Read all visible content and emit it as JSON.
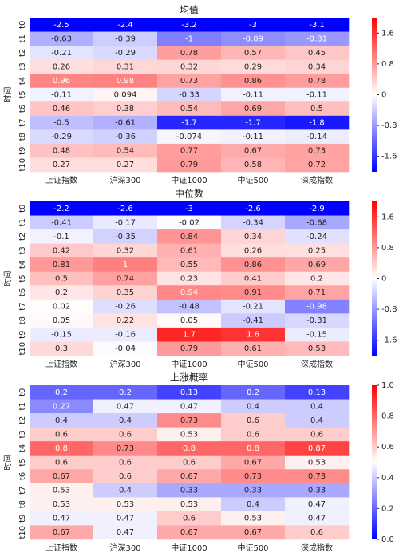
{
  "chart_data": [
    {
      "type": "heatmap",
      "title": "均值",
      "ylabel": "时间",
      "cmap": "bwr",
      "x": [
        "上证指数",
        "沪深300",
        "中证1000",
        "中证500",
        "深成指数"
      ],
      "y": [
        "t0",
        "t1",
        "t2",
        "t3",
        "t4",
        "t5",
        "t6",
        "t7",
        "t8",
        "t9",
        "t10"
      ],
      "values": [
        [
          -2.5,
          -2.4,
          -3.2,
          -3,
          -3.1
        ],
        [
          -0.63,
          -0.39,
          -1,
          -0.89,
          -0.81
        ],
        [
          -0.21,
          -0.29,
          0.78,
          0.57,
          0.45
        ],
        [
          0.26,
          0.31,
          0.32,
          0.29,
          0.34
        ],
        [
          0.96,
          0.98,
          0.73,
          0.86,
          0.78
        ],
        [
          -0.11,
          0.094,
          -0.33,
          -0.11,
          -0.11
        ],
        [
          0.46,
          0.38,
          0.54,
          0.69,
          0.5
        ],
        [
          -0.5,
          -0.61,
          -1.7,
          -1.7,
          -1.8
        ],
        [
          -0.29,
          -0.36,
          -0.074,
          -0.11,
          -0.14
        ],
        [
          0.48,
          0.54,
          0.77,
          0.67,
          0.73
        ],
        [
          0.27,
          0.27,
          0.79,
          0.58,
          0.72
        ]
      ],
      "zlim": [
        -2,
        2
      ],
      "zticks": [
        -1.6,
        -0.8,
        0,
        0.8,
        1.6
      ]
    },
    {
      "type": "heatmap",
      "title": "中位数",
      "ylabel": "时间",
      "cmap": "bwr",
      "x": [
        "上证指数",
        "沪深300",
        "中证1000",
        "中证500",
        "深成指数"
      ],
      "y": [
        "t0",
        "t1",
        "t2",
        "t3",
        "t4",
        "t5",
        "t6",
        "t7",
        "t8",
        "t9",
        "t10"
      ],
      "values": [
        [
          -2.2,
          -2.6,
          -3,
          -2.6,
          -2.9
        ],
        [
          -0.41,
          -0.17,
          -0.02,
          -0.34,
          -0.68
        ],
        [
          -0.1,
          -0.35,
          0.84,
          0.34,
          -0.24
        ],
        [
          0.42,
          0.32,
          0.61,
          0.26,
          0.25
        ],
        [
          0.81,
          1,
          0.55,
          0.86,
          0.69
        ],
        [
          0.5,
          0.74,
          0.23,
          0.41,
          0.2
        ],
        [
          0.2,
          0.35,
          0.94,
          0.91,
          0.71
        ],
        [
          0.02,
          -0.26,
          -0.48,
          -0.21,
          -0.98
        ],
        [
          0.05,
          0.22,
          0.05,
          -0.41,
          -0.31
        ],
        [
          -0.15,
          -0.16,
          1.7,
          1.6,
          -0.15
        ],
        [
          0.3,
          -0.04,
          0.79,
          0.61,
          0.53
        ]
      ],
      "zlim": [
        -2,
        2
      ],
      "zticks": [
        -1.6,
        -0.8,
        0,
        0.8,
        1.6
      ]
    },
    {
      "type": "heatmap",
      "title": "上涨概率",
      "ylabel": "时间",
      "cmap": "bwr",
      "x": [
        "上证指数",
        "沪深300",
        "中证1000",
        "中证500",
        "深成指数"
      ],
      "y": [
        "t0",
        "t1",
        "t2",
        "t3",
        "t4",
        "t5",
        "t6",
        "t7",
        "t8",
        "t9",
        "t10"
      ],
      "values": [
        [
          0.2,
          0.2,
          0.13,
          0.2,
          0.13
        ],
        [
          0.27,
          0.47,
          0.47,
          0.4,
          0.4
        ],
        [
          0.4,
          0.4,
          0.73,
          0.6,
          0.4
        ],
        [
          0.6,
          0.6,
          0.53,
          0.6,
          0.6
        ],
        [
          0.8,
          0.73,
          0.8,
          0.8,
          0.87
        ],
        [
          0.6,
          0.6,
          0.6,
          0.67,
          0.53
        ],
        [
          0.67,
          0.6,
          0.67,
          0.73,
          0.73
        ],
        [
          0.53,
          0.4,
          0.33,
          0.33,
          0.33
        ],
        [
          0.53,
          0.53,
          0.53,
          0.4,
          0.47
        ],
        [
          0.47,
          0.47,
          0.6,
          0.53,
          0.47
        ],
        [
          0.67,
          0.47,
          0.67,
          0.67,
          0.6
        ]
      ],
      "zlim": [
        0,
        1
      ],
      "zticks": [
        {
          "value": 0,
          "label": "0.0"
        },
        0.2,
        0.4,
        0.6,
        0.8,
        {
          "value": 1,
          "label": "1.0"
        }
      ]
    }
  ]
}
